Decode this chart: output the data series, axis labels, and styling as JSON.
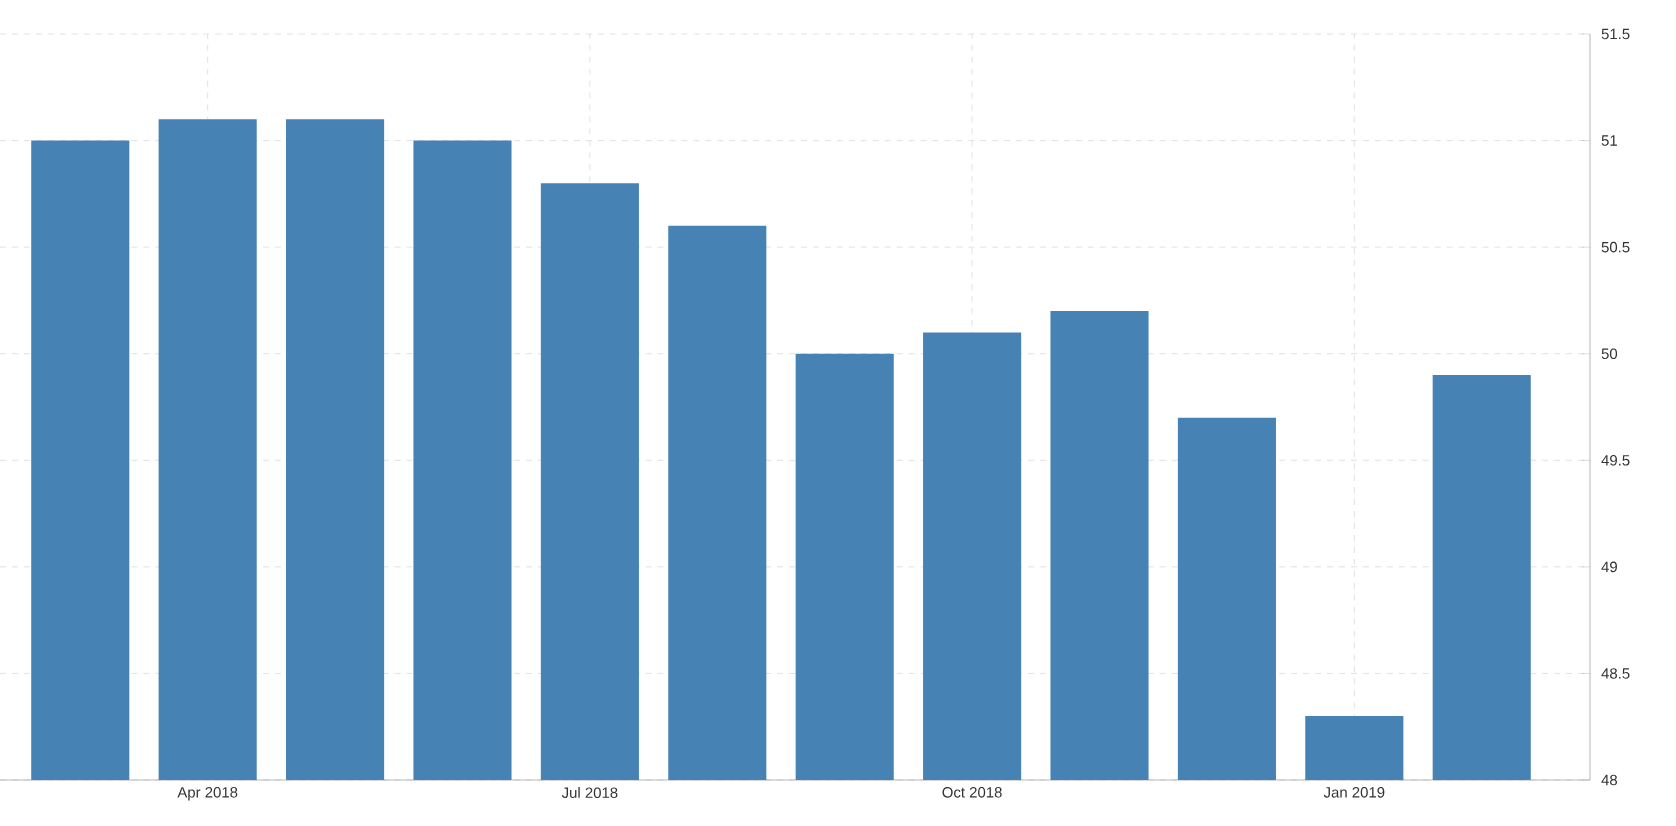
{
  "chart_data": {
    "type": "bar",
    "categories": [
      null,
      "Apr 2018",
      null,
      null,
      "Jul 2018",
      null,
      null,
      "Oct 2018",
      null,
      null,
      "Jan 2019",
      null
    ],
    "values": [
      51,
      51.1,
      51.1,
      51,
      50.8,
      50.6,
      50,
      50.1,
      50.2,
      49.7,
      48.3,
      49.9
    ],
    "color": "#4682b4",
    "ylim": [
      48,
      51.5
    ],
    "yticks": [
      48,
      48.5,
      49,
      49.5,
      50,
      50.5,
      51,
      51.5
    ],
    "grid": true
  }
}
